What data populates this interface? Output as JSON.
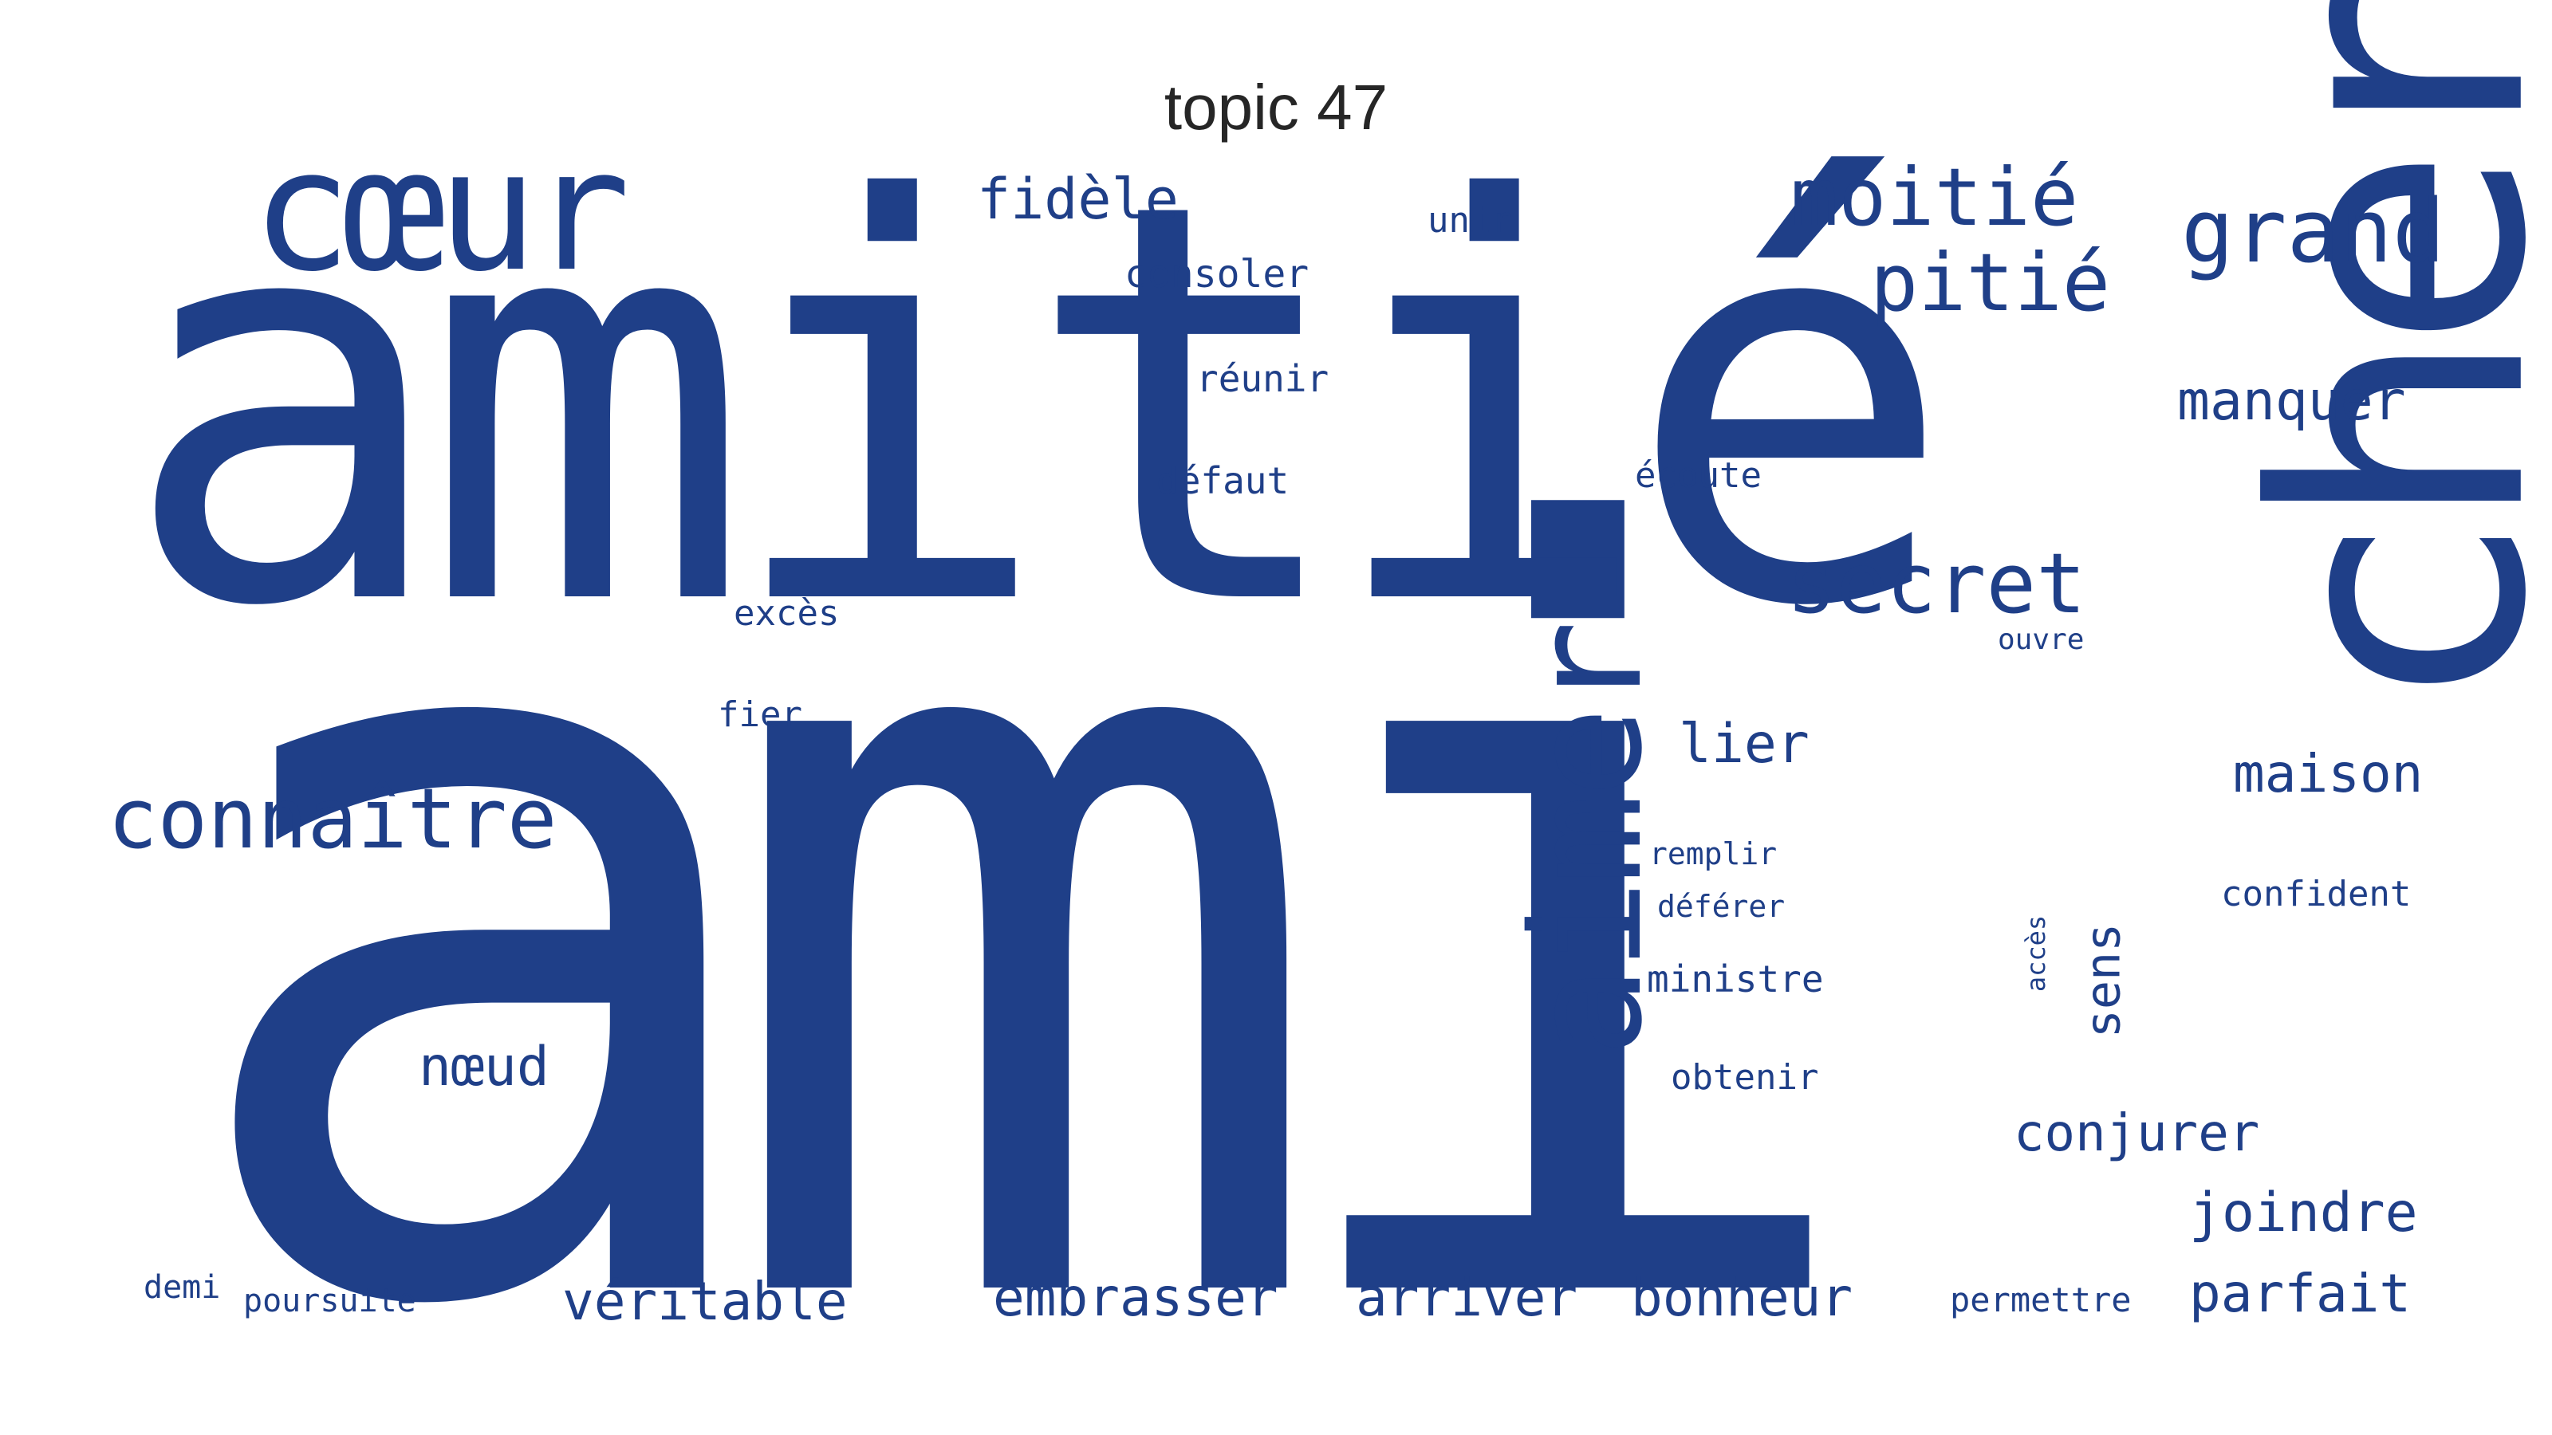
{
  "title": "topic 47",
  "text_color": "#1f3f88",
  "background": "#ffffff",
  "words": [
    {
      "key": "ami",
      "text": "ami"
    },
    {
      "key": "amitie",
      "text": "amitié"
    },
    {
      "key": "cher",
      "text": "cher"
    },
    {
      "key": "coeur",
      "text": "cœur"
    },
    {
      "key": "aimer",
      "text": "aimer"
    },
    {
      "key": "moitie",
      "text": "moitié"
    },
    {
      "key": "grand",
      "text": "grand"
    },
    {
      "key": "pitie",
      "text": "pitié"
    },
    {
      "key": "secret",
      "text": "secret"
    },
    {
      "key": "connaitre",
      "text": "connaître"
    },
    {
      "key": "fidele",
      "text": "fidèle"
    },
    {
      "key": "manquer",
      "text": "manquer"
    },
    {
      "key": "lier",
      "text": "lier"
    },
    {
      "key": "maison",
      "text": "maison"
    },
    {
      "key": "noeud",
      "text": "nœud"
    },
    {
      "key": "conjurer",
      "text": "conjurer"
    },
    {
      "key": "joindre",
      "text": "joindre"
    },
    {
      "key": "veritable",
      "text": "véritable"
    },
    {
      "key": "embrasser",
      "text": "embrasser"
    },
    {
      "key": "arriver",
      "text": "arriver"
    },
    {
      "key": "bonheur",
      "text": "bonheur"
    },
    {
      "key": "parfait",
      "text": "parfait"
    },
    {
      "key": "sens",
      "text": "sens"
    },
    {
      "key": "unir",
      "text": "unir"
    },
    {
      "key": "consoler",
      "text": "consoler"
    },
    {
      "key": "reunir",
      "text": "réunir"
    },
    {
      "key": "defaut",
      "text": "défaut"
    },
    {
      "key": "ecoute",
      "text": "écoute"
    },
    {
      "key": "exces",
      "text": "excès"
    },
    {
      "key": "ouvre",
      "text": "ouvre"
    },
    {
      "key": "fier",
      "text": "fier"
    },
    {
      "key": "remplir",
      "text": "remplir"
    },
    {
      "key": "deferer",
      "text": "déférer"
    },
    {
      "key": "ministre",
      "text": "ministre"
    },
    {
      "key": "obtenir",
      "text": "obtenir"
    },
    {
      "key": "confident",
      "text": "confident"
    },
    {
      "key": "acces",
      "text": "accès"
    },
    {
      "key": "demi",
      "text": "demi"
    },
    {
      "key": "poursuite",
      "text": "poursuite"
    },
    {
      "key": "permettre",
      "text": "permettre"
    }
  ]
}
